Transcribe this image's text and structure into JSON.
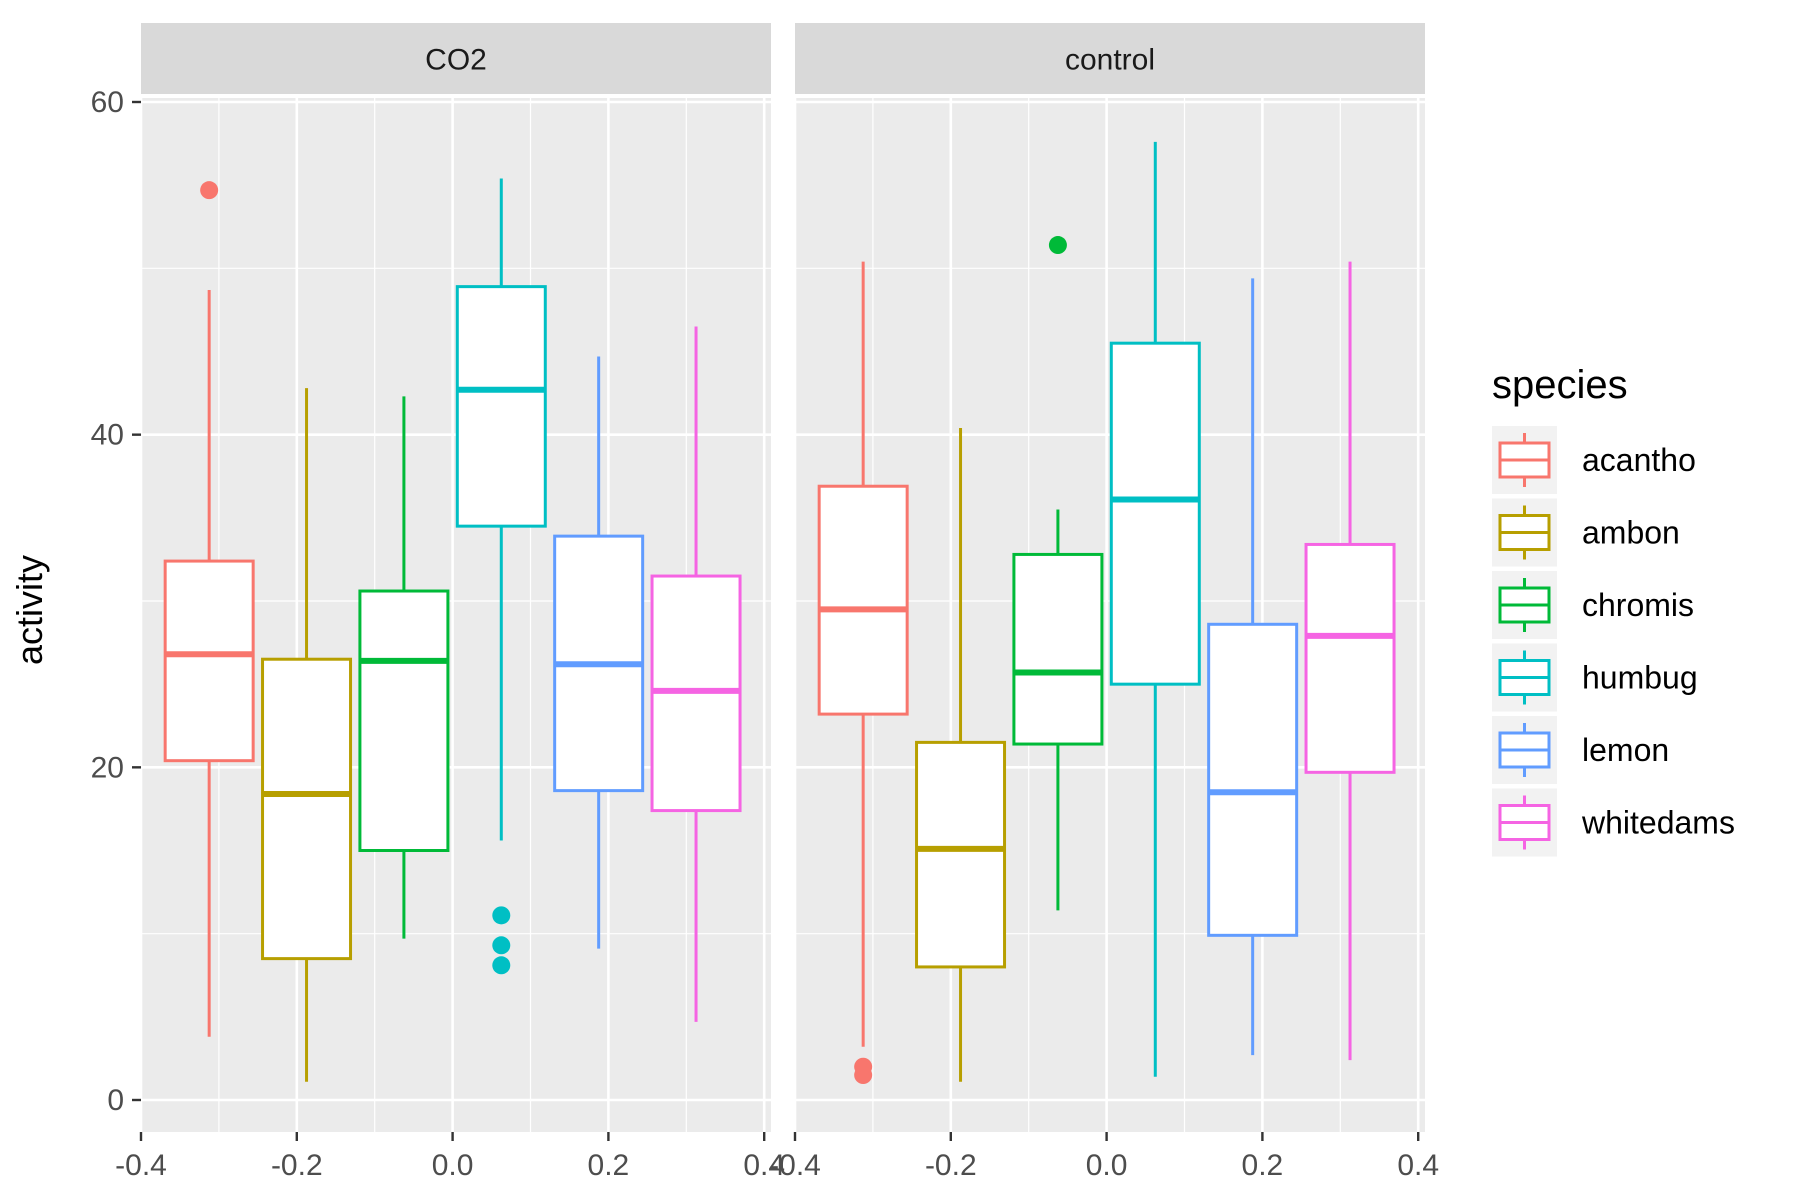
{
  "chart_data": {
    "type": "boxplot",
    "facets": [
      "CO2",
      "control"
    ],
    "xlabel": "",
    "ylabel": "activity",
    "xlim": [
      -0.4,
      0.4
    ],
    "ylim": [
      0,
      60
    ],
    "x_ticks": [
      -0.4,
      -0.2,
      0.0,
      0.2,
      0.4
    ],
    "x_tick_labels": [
      "-0.4",
      "-0.2",
      "0.0",
      "0.2",
      "0.4"
    ],
    "y_ticks": [
      0,
      20,
      40,
      60
    ],
    "y_tick_labels": [
      "0",
      "20",
      "40",
      "60"
    ],
    "grid": true,
    "legend": {
      "title": "species",
      "position": "right",
      "entries": [
        "acantho",
        "ambon",
        "chromis",
        "humbug",
        "lemon",
        "whitedams"
      ]
    },
    "series": [
      {
        "name": "acantho",
        "color": "#F8766D",
        "x": -0.3125,
        "panels": [
          {
            "min": 3.8,
            "q1": 20.4,
            "median": 26.8,
            "q3": 32.4,
            "max": 48.7,
            "outliers": [
              54.7
            ]
          },
          {
            "min": 3.2,
            "q1": 23.2,
            "median": 29.5,
            "q3": 36.9,
            "max": 50.4,
            "outliers": [
              2.0,
              1.5
            ]
          }
        ]
      },
      {
        "name": "ambon",
        "color": "#B79F00",
        "x": -0.1875,
        "panels": [
          {
            "min": 1.1,
            "q1": 8.5,
            "median": 18.4,
            "q3": 26.5,
            "max": 42.8,
            "outliers": []
          },
          {
            "min": 1.1,
            "q1": 8.0,
            "median": 15.1,
            "q3": 21.5,
            "max": 40.4,
            "outliers": []
          }
        ]
      },
      {
        "name": "chromis",
        "color": "#00BA38",
        "x": -0.0625,
        "panels": [
          {
            "min": 9.7,
            "q1": 15.0,
            "median": 26.4,
            "q3": 30.6,
            "max": 42.3,
            "outliers": []
          },
          {
            "min": 11.4,
            "q1": 21.4,
            "median": 25.7,
            "q3": 32.8,
            "max": 35.5,
            "outliers": [
              51.4
            ]
          }
        ]
      },
      {
        "name": "humbug",
        "color": "#00BFC4",
        "x": 0.0625,
        "panels": [
          {
            "min": 15.6,
            "q1": 34.5,
            "median": 42.7,
            "q3": 48.9,
            "max": 55.4,
            "outliers": [
              11.1,
              9.3,
              8.1
            ]
          },
          {
            "min": 1.4,
            "q1": 25.0,
            "median": 36.1,
            "q3": 45.5,
            "max": 57.6,
            "outliers": []
          }
        ]
      },
      {
        "name": "lemon",
        "color": "#619CFF",
        "x": 0.1875,
        "panels": [
          {
            "min": 9.1,
            "q1": 18.6,
            "median": 26.2,
            "q3": 33.9,
            "max": 44.7,
            "outliers": []
          },
          {
            "min": 2.7,
            "q1": 9.9,
            "median": 18.5,
            "q3": 28.6,
            "max": 49.4,
            "outliers": []
          }
        ]
      },
      {
        "name": "whitedams",
        "color": "#F564E3",
        "x": 0.3125,
        "panels": [
          {
            "min": 4.7,
            "q1": 17.4,
            "median": 24.6,
            "q3": 31.5,
            "max": 46.5,
            "outliers": []
          },
          {
            "min": 2.4,
            "q1": 19.7,
            "median": 27.9,
            "q3": 33.4,
            "max": 50.4,
            "outliers": []
          }
        ]
      }
    ]
  }
}
